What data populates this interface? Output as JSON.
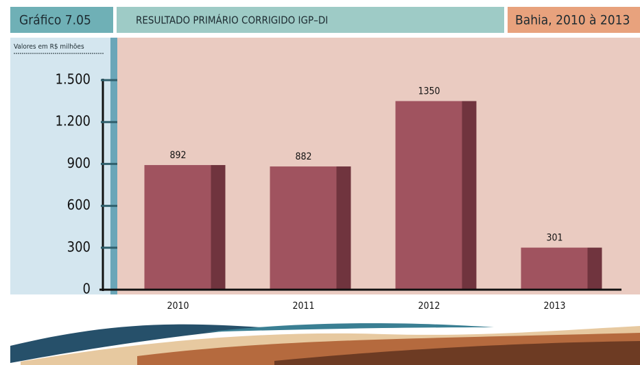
{
  "chart_data": {
    "type": "bar",
    "figure_label": "Gráfico 7.05",
    "title": "RESULTADO PRIMÁRIO CORRIGIDO IGP–DI",
    "region": "Bahia, 2010 à 2013",
    "y_label": "Valores em R$ milhões",
    "categories": [
      "2010",
      "2011",
      "2012",
      "2013"
    ],
    "values": [
      892,
      882,
      1350,
      301
    ],
    "color": "#a0535f",
    "ylim": [
      0,
      1500
    ],
    "yticks": [
      0,
      300,
      600,
      900,
      {
        "value": 1200,
        "label": "1.200"
      },
      {
        "value": 1500,
        "label": "1.500"
      }
    ],
    "grid": false
  }
}
